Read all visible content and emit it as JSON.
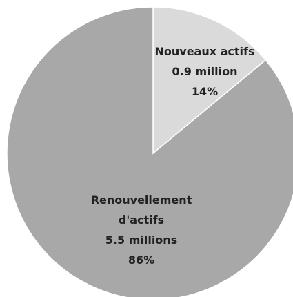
{
  "chart_data": {
    "type": "pie",
    "categories": [
      "Nouveaux actifs",
      "Renouvellement d'actifs"
    ],
    "amounts": [
      "0.9 million",
      "5.5 millions"
    ],
    "values": [
      14,
      86
    ],
    "value_labels": [
      "14%",
      "86%"
    ],
    "colors": [
      "#dadada",
      "#a8a8a8"
    ]
  }
}
